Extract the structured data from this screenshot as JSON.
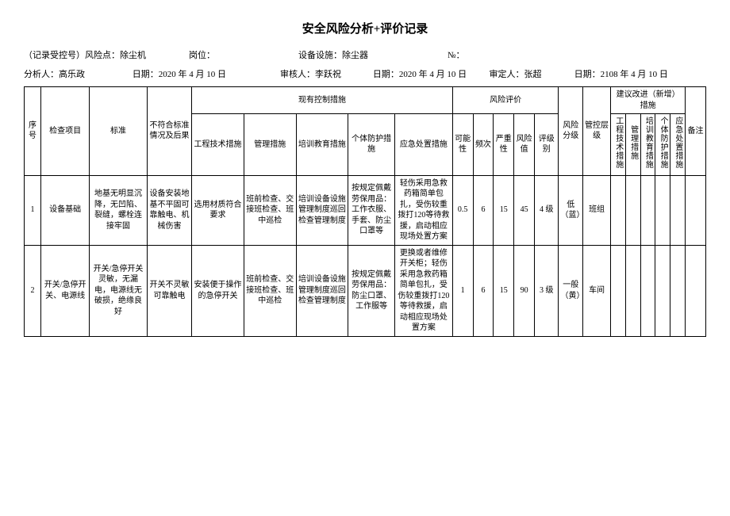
{
  "title": "安全风险分析+评价记录",
  "meta1": {
    "record": "（记录受控号）风险点：除尘机",
    "post_label": "岗位：",
    "equip": "设备设施：除尘器",
    "no_label": "№："
  },
  "meta2": {
    "analyst": "分析人：高乐政",
    "date1": "日期：2020 年 4 月 10 日",
    "reviewer": "审核人：李跃祝",
    "date2": "日期：2020 年 4 月 10 日",
    "approver": "审定人：张超",
    "date3": "日期：2108 年 4 月 10 日"
  },
  "headers": {
    "seq": "序号",
    "item": "检查项目",
    "std": "标准",
    "noncon": "不符合标准情况及后果",
    "existing": "现有控制措施",
    "eng": "工程技术措施",
    "mgmt": "管理措施",
    "train": "培训教育措施",
    "ppe": "个体防护措施",
    "emg": "应急处置措施",
    "risk_eval": "风险评价",
    "poss": "可能性",
    "freq": "频次",
    "sev": "严重性",
    "val": "风险值",
    "lvl": "评级别",
    "risk_grade": "风险分级",
    "ctrl_lvl": "管控层级",
    "suggest": "建议改进（新增）措施",
    "sug_eng": "工程技术措施",
    "sug_mgmt": "管理措施",
    "sug_train": "培训教育措施",
    "sug_ppe": "个体防护措施",
    "sug_emg": "应急处置措施",
    "note": "备注"
  },
  "rows": [
    {
      "seq": "1",
      "item": "设备基础",
      "std": "地基无明显沉降，无凹陷、裂缝，螺栓连接牢固",
      "noncon": "设备安装地基不平固可靠触电、机械伤害",
      "eng": "选用材质符合要求",
      "mgmt": "班前检查、交接班检查、班中巡检",
      "train": "培训设备设施管理制度巡回检查管理制度",
      "ppe": "按规定佩戴劳保用品：工作衣服、手套、防尘口罩等",
      "emg": "轻伤采用急救药箱简单包扎，受伤较重拨打120等待救援，启动相应现场处置方案",
      "poss": "0.5",
      "freq": "6",
      "sev": "15",
      "val": "45",
      "lvl": "4 级",
      "grade": "低（蓝）",
      "ctrl": "班组"
    },
    {
      "seq": "2",
      "item": "开关/急停开关、电源线",
      "std": "开关/急停开关灵敏，无漏电，电源线无破损，绝缘良好",
      "noncon": "开关不灵敏可靠触电",
      "eng": "安装便于操作的急停开关",
      "mgmt": "班前检查、交接班检查、班中巡检",
      "train": "培训设备设施管理制度巡回检查管理制度",
      "ppe": "按规定佩戴劳保用品：防尘口罩、工作服等",
      "emg": "更换或者维修开关柜；轻伤采用急救药箱简单包扎，受伤较重拨打120等待救援，启动相应现场处置方案",
      "poss": "1",
      "freq": "6",
      "sev": "15",
      "val": "90",
      "lvl": "3 级",
      "grade": "一般（黄）",
      "ctrl": "车间"
    }
  ]
}
